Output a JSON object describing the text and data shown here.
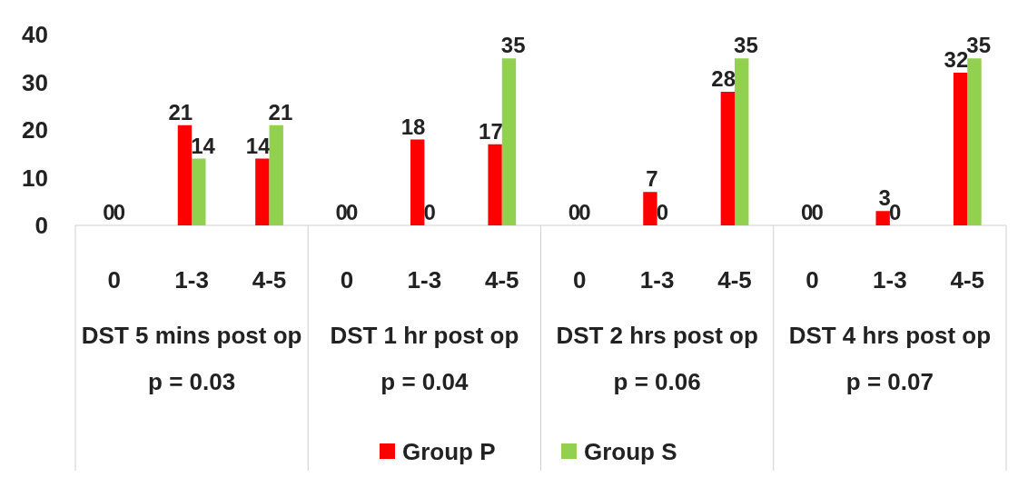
{
  "chart_data": {
    "type": "bar",
    "categories": [
      "0",
      "1-3",
      "4-5",
      "0",
      "1-3",
      "4-5",
      "0",
      "1-3",
      "4-5",
      "0",
      "1-3",
      "4-5"
    ],
    "series": [
      {
        "name": "Group P",
        "color": "#ff0000",
        "values": [
          0,
          21,
          14,
          0,
          18,
          17,
          0,
          7,
          28,
          0,
          3,
          32
        ]
      },
      {
        "name": "Group S",
        "color": "#92d050",
        "values": [
          0,
          14,
          21,
          0,
          0,
          35,
          0,
          0,
          35,
          0,
          0,
          35
        ]
      }
    ],
    "ylim": [
      0,
      40
    ],
    "yticks": [
      0,
      10,
      20,
      30,
      40
    ],
    "data_labels": true,
    "legend": "bottom",
    "annotations": [
      "DST 5 mins post op\np = 0.03",
      "DST 1 hr post op\np = 0.04",
      "DST 2 hrs post op\np = 0.06",
      "DST 4 hrs post op\np = 0.07"
    ]
  }
}
